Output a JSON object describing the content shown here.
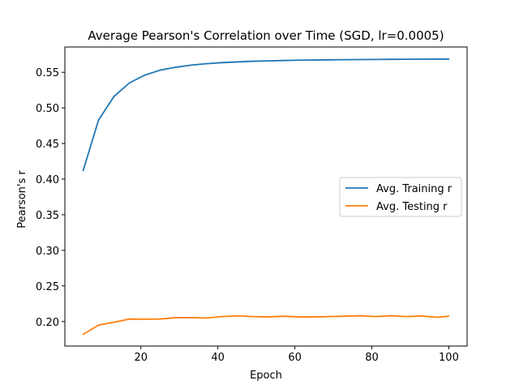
{
  "chart_data": {
    "type": "line",
    "title": "Average Pearson's Correlation over Time (SGD, lr=0.0005)",
    "xlabel": "Epoch",
    "ylabel": "Pearson's r",
    "xlim": [
      0.25,
      104.75
    ],
    "ylim": [
      0.1656,
      0.5855
    ],
    "xticks": [
      20,
      40,
      60,
      80,
      100
    ],
    "yticks": [
      0.2,
      0.25,
      0.3,
      0.35,
      0.4,
      0.45,
      0.5,
      0.55
    ],
    "legend_position": "center-right",
    "grid": false,
    "x": [
      5,
      9,
      13,
      17,
      21,
      25,
      29,
      33,
      37,
      41,
      45,
      49,
      53,
      57,
      61,
      65,
      69,
      73,
      77,
      81,
      85,
      89,
      93,
      97,
      100
    ],
    "series": [
      {
        "name": "Avg. Training r",
        "color": "#1f77b4",
        "values": [
          0.412,
          0.483,
          0.516,
          0.535,
          0.546,
          0.553,
          0.557,
          0.56,
          0.562,
          0.5635,
          0.5645,
          0.5655,
          0.566,
          0.5665,
          0.567,
          0.5672,
          0.5675,
          0.5677,
          0.5679,
          0.568,
          0.5682,
          0.5683,
          0.5684,
          0.5685,
          0.5685
        ]
      },
      {
        "name": "Avg. Testing r",
        "color": "#ff7f0e",
        "values": [
          0.182,
          0.195,
          0.199,
          0.2035,
          0.2033,
          0.2035,
          0.2055,
          0.2055,
          0.205,
          0.207,
          0.208,
          0.207,
          0.2065,
          0.2075,
          0.2065,
          0.2065,
          0.207,
          0.2075,
          0.2082,
          0.207,
          0.2082,
          0.207,
          0.2078,
          0.206,
          0.2075
        ]
      }
    ]
  }
}
